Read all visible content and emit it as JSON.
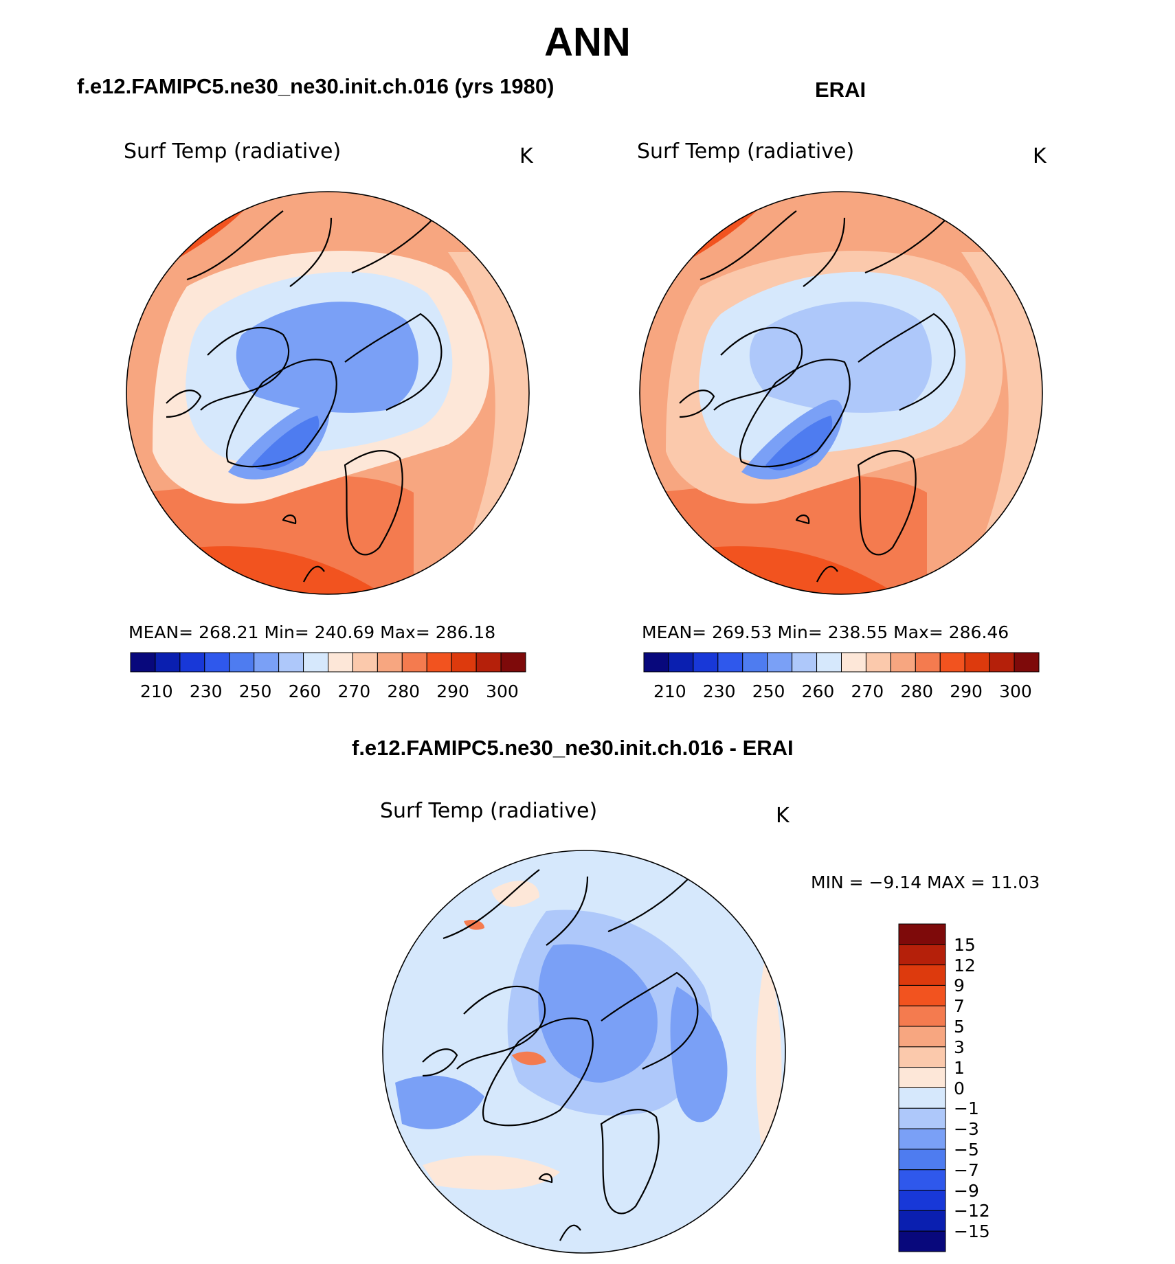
{
  "title": "ANN",
  "colors": {
    "abs_scale": [
      "#08087c",
      "#0a1fb0",
      "#1838d8",
      "#2f58ec",
      "#4e7cf0",
      "#7aa0f6",
      "#aec8fa",
      "#d6e8fc",
      "#fde7d8",
      "#fbc9ac",
      "#f7a680",
      "#f47b4f",
      "#f2531f",
      "#dd3a0d",
      "#b5200a",
      "#7e0a0a"
    ],
    "diff_scale": [
      "#08087c",
      "#0a1fb0",
      "#1838d8",
      "#2f58ec",
      "#4e7cf0",
      "#7aa0f6",
      "#aec8fa",
      "#d6e8fc",
      "#fde7d8",
      "#fbc9ac",
      "#f7a680",
      "#f47b4f",
      "#f2531f",
      "#dd3a0d",
      "#b5200a",
      "#7e0a0a"
    ]
  },
  "chart_data": [
    {
      "type": "heatmap",
      "panel": "model",
      "subtitle": "f.e12.FAMIPC5.ne30_ne30.init.ch.016 (yrs 1980)",
      "variable": "Surf Temp (radiative)",
      "units": "K",
      "stats_text": "MEAN= 268.21   Min= 240.69   Max= 286.18",
      "mean": 268.21,
      "min": 240.69,
      "max": 286.18,
      "colorbar_ticks": [
        "210",
        "230",
        "250",
        "260",
        "270",
        "280",
        "290",
        "300"
      ],
      "colorbar_orientation": "horizontal"
    },
    {
      "type": "heatmap",
      "panel": "obs",
      "subtitle": "ERAI",
      "variable": "Surf Temp (radiative)",
      "units": "K",
      "stats_text": "MEAN= 269.53   Min= 238.55   Max= 286.46",
      "mean": 269.53,
      "min": 238.55,
      "max": 286.46,
      "colorbar_ticks": [
        "210",
        "230",
        "250",
        "260",
        "270",
        "280",
        "290",
        "300"
      ],
      "colorbar_orientation": "horizontal"
    },
    {
      "type": "heatmap",
      "panel": "difference",
      "subtitle": "f.e12.FAMIPC5.ne30_ne30.init.ch.016 - ERAI",
      "variable": "Surf Temp (radiative)",
      "units": "K",
      "minmax_text": "MIN =    −9.14  MAX =    11.03",
      "min": -9.14,
      "max": 11.03,
      "colorbar_ticks": [
        "15",
        "12",
        "9",
        "7",
        "5",
        "3",
        "1",
        "0",
        "−1",
        "−3",
        "−5",
        "−7",
        "−9",
        "−12",
        "−15"
      ],
      "colorbar_orientation": "vertical"
    }
  ]
}
